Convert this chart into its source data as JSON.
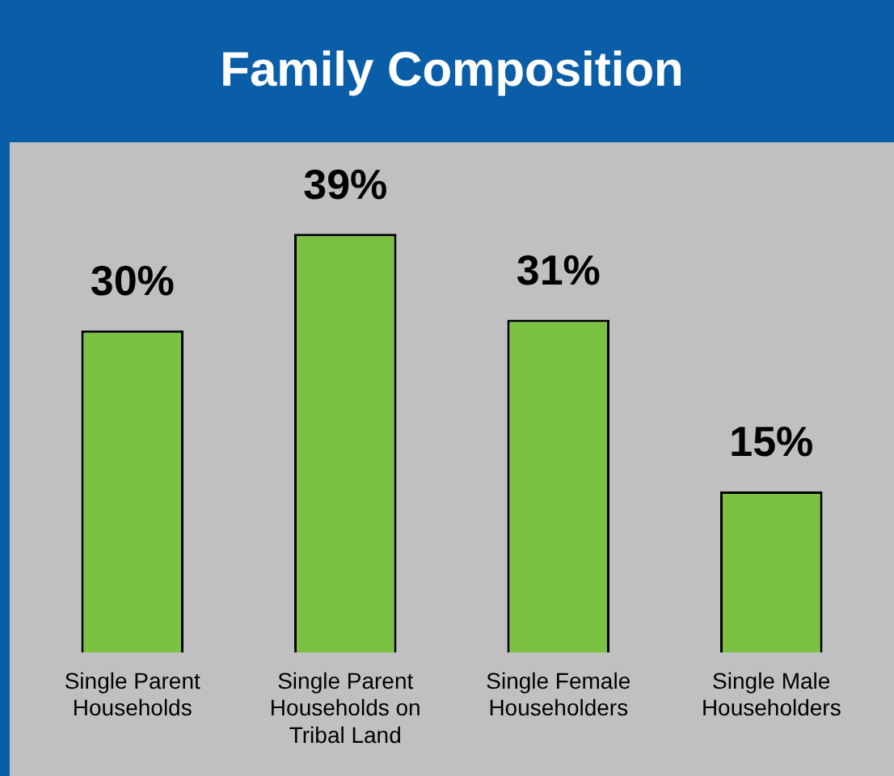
{
  "chart_data": {
    "type": "bar",
    "title": "Family Composition",
    "categories": [
      "Single Parent Households",
      "Single Parent Households on Tribal Land",
      "Single Female Householders",
      "Single Male Householders"
    ],
    "values": [
      30,
      39,
      31,
      15
    ],
    "color": "#7cc242",
    "value_labels": [
      "30%",
      "39%",
      "31%",
      "15%"
    ],
    "grid": false,
    "legend": false
  }
}
